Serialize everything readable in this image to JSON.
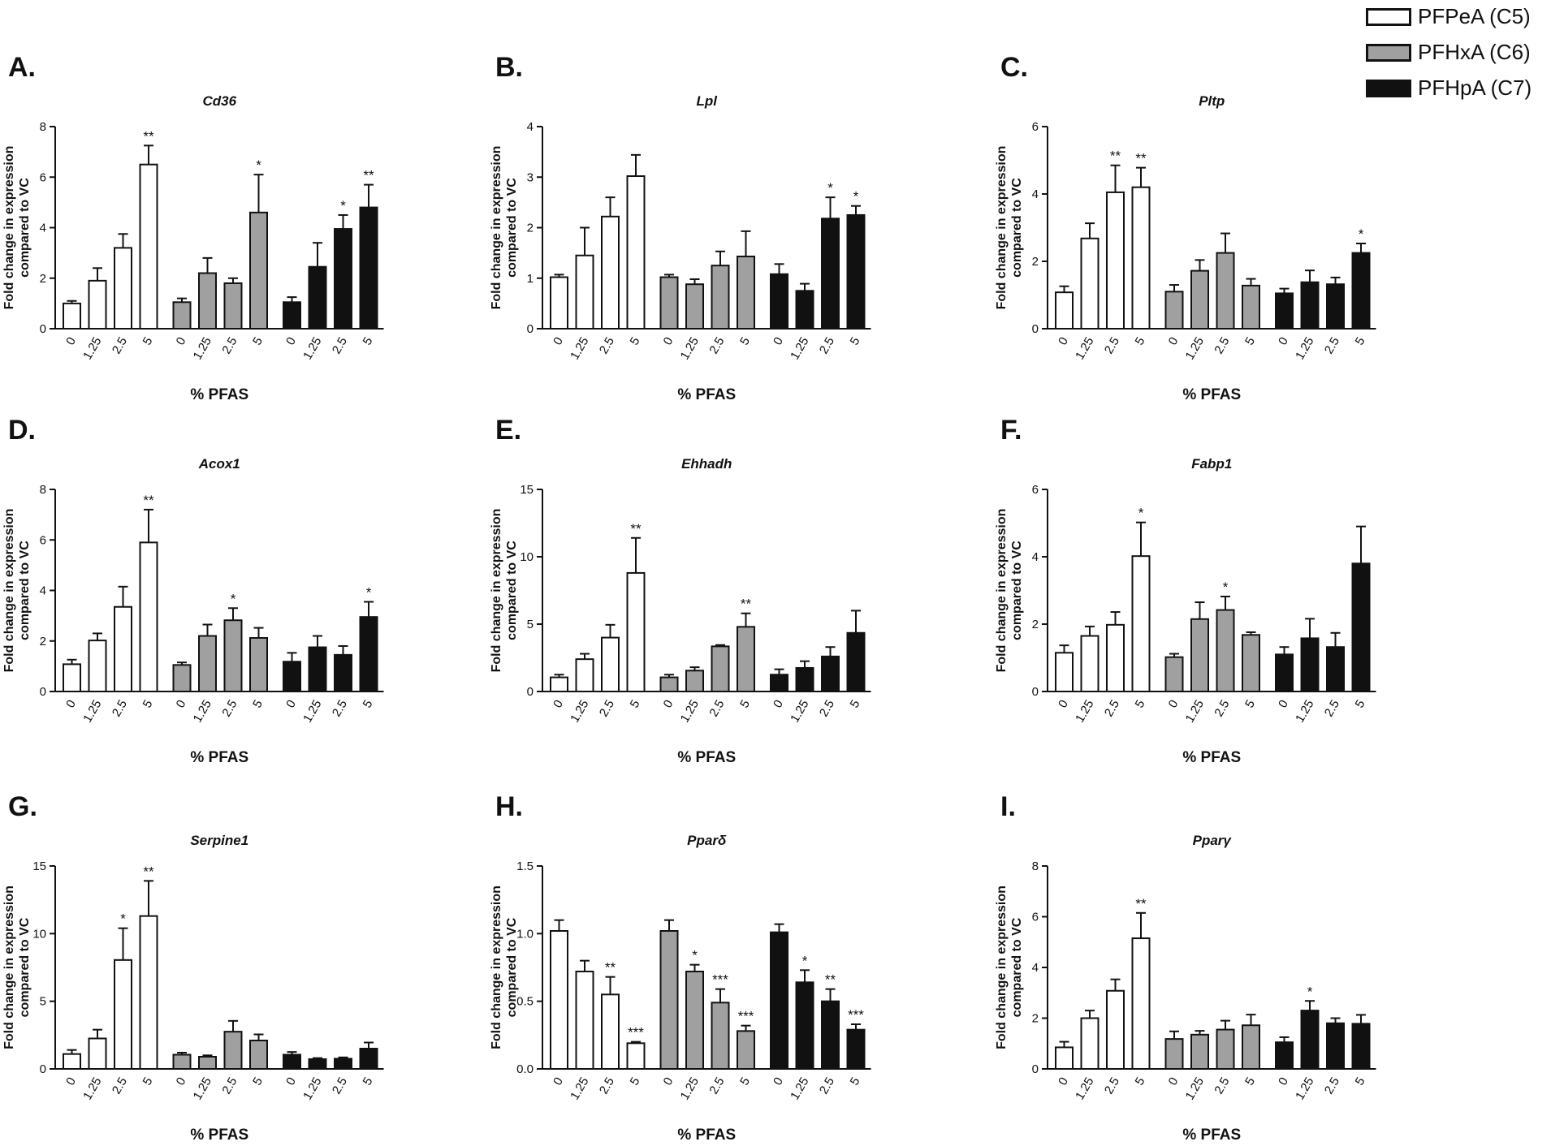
{
  "legend": [
    {
      "label": "PFPeA (C5)",
      "color": "#ffffff"
    },
    {
      "label": "PFHxA (C6)",
      "color": "#a0a0a0"
    },
    {
      "label": "PFHpA (C7)",
      "color": "#111111"
    }
  ],
  "chart_data": [
    {
      "type": "bar",
      "panel": "A.",
      "title": "Cd36",
      "title_italic": true,
      "ylabel": [
        "Fold change in expression",
        "compared to VC"
      ],
      "xlabel": "% PFAS",
      "categories": [
        "0",
        "1.25",
        "2.5",
        "5"
      ],
      "ylim": [
        0,
        8
      ],
      "yticks": [
        "0",
        "2",
        "4",
        "6",
        "8"
      ],
      "series": [
        {
          "name": "PFPeA (C5)",
          "values": [
            1.0,
            1.9,
            3.2,
            6.5
          ],
          "errors": [
            0.1,
            0.5,
            0.55,
            0.75
          ],
          "sig": [
            "",
            "",
            "",
            "**"
          ]
        },
        {
          "name": "PFHxA (C6)",
          "values": [
            1.05,
            2.2,
            1.8,
            4.6
          ],
          "errors": [
            0.15,
            0.6,
            0.2,
            1.5
          ],
          "sig": [
            "",
            "",
            "",
            "*"
          ]
        },
        {
          "name": "PFHpA (C7)",
          "values": [
            1.05,
            2.45,
            3.95,
            4.8
          ],
          "errors": [
            0.2,
            0.95,
            0.55,
            0.9
          ],
          "sig": [
            "",
            "",
            "*",
            "**"
          ]
        }
      ]
    },
    {
      "type": "bar",
      "panel": "B.",
      "title": "Lpl",
      "title_italic": true,
      "ylabel": [
        "Fold change in expression",
        "compared to VC"
      ],
      "xlabel": "% PFAS",
      "categories": [
        "0",
        "1.25",
        "2.5",
        "5"
      ],
      "ylim": [
        0,
        4
      ],
      "yticks": [
        "0",
        "1",
        "2",
        "3",
        "4"
      ],
      "series": [
        {
          "name": "PFPeA (C5)",
          "values": [
            1.02,
            1.45,
            2.22,
            3.02
          ],
          "errors": [
            0.05,
            0.55,
            0.38,
            0.42
          ],
          "sig": [
            "",
            "",
            "",
            ""
          ]
        },
        {
          "name": "PFHxA (C6)",
          "values": [
            1.02,
            0.88,
            1.25,
            1.43
          ],
          "errors": [
            0.05,
            0.1,
            0.28,
            0.5
          ],
          "sig": [
            "",
            "",
            "",
            ""
          ]
        },
        {
          "name": "PFHpA (C7)",
          "values": [
            1.08,
            0.75,
            2.18,
            2.25
          ],
          "errors": [
            0.2,
            0.14,
            0.42,
            0.18
          ],
          "sig": [
            "",
            "",
            "*",
            "*"
          ]
        }
      ]
    },
    {
      "type": "bar",
      "panel": "C.",
      "title": "Pltp",
      "title_italic": true,
      "ylabel": [
        "Fold change in expression",
        "compared to VC"
      ],
      "xlabel": "% PFAS",
      "categories": [
        "0",
        "1.25",
        "2.5",
        "5"
      ],
      "ylim": [
        0,
        6
      ],
      "yticks": [
        "0",
        "2",
        "4",
        "6"
      ],
      "series": [
        {
          "name": "PFPeA (C5)",
          "values": [
            1.08,
            2.68,
            4.05,
            4.2
          ],
          "errors": [
            0.18,
            0.45,
            0.8,
            0.58
          ],
          "sig": [
            "",
            "",
            "**",
            "**"
          ]
        },
        {
          "name": "PFHxA (C6)",
          "values": [
            1.1,
            1.72,
            2.25,
            1.28
          ],
          "errors": [
            0.2,
            0.32,
            0.58,
            0.2
          ],
          "sig": [
            "",
            "",
            "",
            ""
          ]
        },
        {
          "name": "PFHpA (C7)",
          "values": [
            1.05,
            1.38,
            1.32,
            2.25
          ],
          "errors": [
            0.14,
            0.35,
            0.2,
            0.28
          ],
          "sig": [
            "",
            "",
            "",
            "*"
          ]
        }
      ]
    },
    {
      "type": "bar",
      "panel": "D.",
      "title": "Acox1",
      "title_italic": true,
      "ylabel": [
        "Fold change in expression",
        "compared to VC"
      ],
      "xlabel": "% PFAS",
      "categories": [
        "0",
        "1.25",
        "2.5",
        "5"
      ],
      "ylim": [
        0,
        8
      ],
      "yticks": [
        "0",
        "2",
        "4",
        "6",
        "8"
      ],
      "series": [
        {
          "name": "PFPeA (C5)",
          "values": [
            1.08,
            2.02,
            3.35,
            5.9
          ],
          "errors": [
            0.18,
            0.28,
            0.8,
            1.3
          ],
          "sig": [
            "",
            "",
            "",
            "**"
          ]
        },
        {
          "name": "PFHxA (C6)",
          "values": [
            1.05,
            2.2,
            2.82,
            2.12
          ],
          "errors": [
            0.1,
            0.45,
            0.48,
            0.4
          ],
          "sig": [
            "",
            "",
            "*",
            ""
          ]
        },
        {
          "name": "PFHpA (C7)",
          "values": [
            1.18,
            1.75,
            1.45,
            2.95
          ],
          "errors": [
            0.35,
            0.45,
            0.35,
            0.6
          ],
          "sig": [
            "",
            "",
            "",
            "*"
          ]
        }
      ]
    },
    {
      "type": "bar",
      "panel": "E.",
      "title": "Ehhadh",
      "title_italic": true,
      "ylabel": [
        "Fold change in expression",
        "compared to VC"
      ],
      "xlabel": "% PFAS",
      "categories": [
        "0",
        "1.25",
        "2.5",
        "5"
      ],
      "ylim": [
        0,
        15
      ],
      "yticks": [
        "0",
        "5",
        "10",
        "15"
      ],
      "series": [
        {
          "name": "PFPeA (C5)",
          "values": [
            1.05,
            2.4,
            4.0,
            8.8
          ],
          "errors": [
            0.2,
            0.4,
            0.95,
            2.6
          ],
          "sig": [
            "",
            "",
            "",
            "**"
          ]
        },
        {
          "name": "PFHxA (C6)",
          "values": [
            1.05,
            1.55,
            3.35,
            4.8
          ],
          "errors": [
            0.2,
            0.25,
            0.1,
            1.0
          ],
          "sig": [
            "",
            "",
            "",
            "**"
          ]
        },
        {
          "name": "PFHpA (C7)",
          "values": [
            1.25,
            1.75,
            2.6,
            4.35
          ],
          "errors": [
            0.4,
            0.5,
            0.7,
            1.65
          ],
          "sig": [
            "",
            "",
            "",
            ""
          ]
        }
      ]
    },
    {
      "type": "bar",
      "panel": "F.",
      "title": "Fabp1",
      "title_italic": true,
      "ylabel": [
        "Fold change in expression",
        "compared to VC"
      ],
      "xlabel": "% PFAS",
      "categories": [
        "0",
        "1.25",
        "2.5",
        "5"
      ],
      "ylim": [
        0,
        6
      ],
      "yticks": [
        "0",
        "2",
        "4",
        "6"
      ],
      "series": [
        {
          "name": "PFPeA (C5)",
          "values": [
            1.15,
            1.65,
            1.98,
            4.02
          ],
          "errors": [
            0.22,
            0.28,
            0.38,
            1.0
          ],
          "sig": [
            "",
            "",
            "",
            "*"
          ]
        },
        {
          "name": "PFHxA (C6)",
          "values": [
            1.02,
            2.15,
            2.42,
            1.68
          ],
          "errors": [
            0.1,
            0.5,
            0.4,
            0.08
          ],
          "sig": [
            "",
            "",
            "*",
            ""
          ]
        },
        {
          "name": "PFHpA (C7)",
          "values": [
            1.1,
            1.58,
            1.32,
            3.8
          ],
          "errors": [
            0.22,
            0.58,
            0.42,
            1.1
          ],
          "sig": [
            "",
            "",
            "",
            ""
          ]
        }
      ]
    },
    {
      "type": "bar",
      "panel": "G.",
      "title": "Serpine1",
      "title_italic": true,
      "ylabel": [
        "Fold change in expression",
        "compared to VC"
      ],
      "xlabel": "% PFAS",
      "categories": [
        "0",
        "1.25",
        "2.5",
        "5"
      ],
      "ylim": [
        0,
        15
      ],
      "yticks": [
        "0",
        "5",
        "10",
        "15"
      ],
      "series": [
        {
          "name": "PFPeA (C5)",
          "values": [
            1.1,
            2.25,
            8.05,
            11.3
          ],
          "errors": [
            0.3,
            0.65,
            2.35,
            2.6
          ],
          "sig": [
            "",
            "",
            "*",
            "**"
          ]
        },
        {
          "name": "PFHxA (C6)",
          "values": [
            1.05,
            0.9,
            2.75,
            2.1
          ],
          "errors": [
            0.15,
            0.1,
            0.8,
            0.45
          ],
          "sig": [
            "",
            "",
            "",
            ""
          ]
        },
        {
          "name": "PFHpA (C7)",
          "values": [
            1.05,
            0.72,
            0.75,
            1.5
          ],
          "errors": [
            0.2,
            0.08,
            0.1,
            0.45
          ],
          "sig": [
            "",
            "",
            "",
            ""
          ]
        }
      ]
    },
    {
      "type": "bar",
      "panel": "H.",
      "title": "Pparδ",
      "title_italic": true,
      "ylabel": [
        "Fold change in expression",
        "compared to VC"
      ],
      "xlabel": "% PFAS",
      "categories": [
        "0",
        "1.25",
        "2.5",
        "5"
      ],
      "ylim": [
        0,
        1.5
      ],
      "yticks": [
        "0.0",
        "0.5",
        "1.0",
        "1.5"
      ],
      "series": [
        {
          "name": "PFPeA (C5)",
          "values": [
            1.02,
            0.72,
            0.55,
            0.19
          ],
          "errors": [
            0.08,
            0.08,
            0.13,
            0.01
          ],
          "sig": [
            "",
            "",
            "**",
            "***"
          ]
        },
        {
          "name": "PFHxA (C6)",
          "values": [
            1.02,
            0.72,
            0.49,
            0.28
          ],
          "errors": [
            0.08,
            0.05,
            0.1,
            0.04
          ],
          "sig": [
            "",
            "*",
            "***",
            "***"
          ]
        },
        {
          "name": "PFHpA (C7)",
          "values": [
            1.01,
            0.64,
            0.5,
            0.29
          ],
          "errors": [
            0.06,
            0.09,
            0.09,
            0.04
          ],
          "sig": [
            "",
            "*",
            "**",
            "***"
          ]
        }
      ]
    },
    {
      "type": "bar",
      "panel": "I.",
      "title": "Pparγ",
      "title_italic": true,
      "ylabel": [
        "Fold change in expression",
        "compared to VC"
      ],
      "xlabel": "% PFAS",
      "categories": [
        "0",
        "1.25",
        "2.5",
        "5"
      ],
      "ylim": [
        0,
        8
      ],
      "yticks": [
        "0",
        "2",
        "4",
        "6",
        "8"
      ],
      "series": [
        {
          "name": "PFPeA (C5)",
          "values": [
            0.85,
            2.0,
            3.08,
            5.15
          ],
          "errors": [
            0.22,
            0.3,
            0.45,
            1.0
          ],
          "sig": [
            "",
            "",
            "",
            "**"
          ]
        },
        {
          "name": "PFHxA (C6)",
          "values": [
            1.18,
            1.35,
            1.55,
            1.72
          ],
          "errors": [
            0.3,
            0.15,
            0.35,
            0.42
          ],
          "sig": [
            "",
            "",
            "",
            ""
          ]
        },
        {
          "name": "PFHpA (C7)",
          "values": [
            1.05,
            2.3,
            1.8,
            1.78
          ],
          "errors": [
            0.2,
            0.38,
            0.2,
            0.35
          ],
          "sig": [
            "",
            "*",
            "",
            ""
          ]
        }
      ]
    }
  ]
}
